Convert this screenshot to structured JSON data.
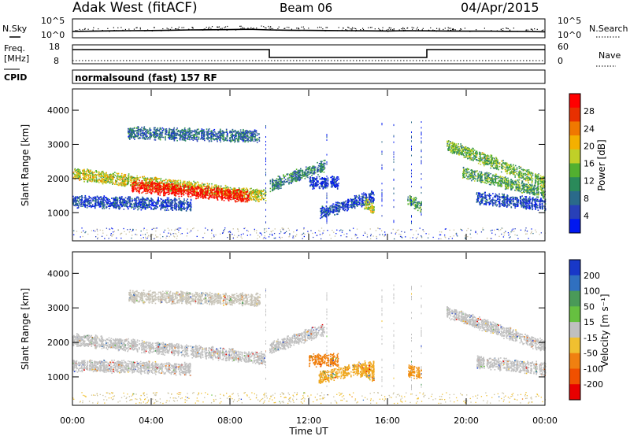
{
  "header": {
    "station": "Adak West (fitACF)",
    "beam": "Beam 06",
    "date": "04/Apr/2015"
  },
  "strip_nsky": {
    "label": "N.Sky",
    "ticks": [
      "10^5",
      "10^0"
    ],
    "right_label": "N.Search",
    "right_ticks": [
      "10^5",
      "10^0"
    ]
  },
  "strip_freq": {
    "label_line1": "Freq.",
    "label_line2": "[MHz]",
    "ticks": [
      "18",
      "8"
    ],
    "right_label": "Nave",
    "right_ticks": [
      "60",
      "0"
    ]
  },
  "cpid": {
    "label": "CPID",
    "mode": "normalsound (fast) 157 RF"
  },
  "colors": {
    "frame": "#000000",
    "noise_speckle": "#c8c0a0"
  },
  "chart_data": [
    {
      "type": "line",
      "panel": "noise",
      "ylabel": "N.Sky",
      "y2label": "N.Search",
      "x": [
        "00:00",
        "01:00",
        "02:00",
        "03:00",
        "04:00",
        "05:00",
        "06:00",
        "07:00",
        "08:00",
        "09:00",
        "10:00",
        "11:00",
        "12:00",
        "13:00",
        "14:00",
        "15:00",
        "16:00",
        "17:00",
        "18:00",
        "19:00",
        "20:00",
        "21:00",
        "22:00",
        "23:00",
        "24:00"
      ],
      "values": [
        0.3,
        0.32,
        0.34,
        0.35,
        0.36,
        0.38,
        0.4,
        0.41,
        0.42,
        0.44,
        0.4,
        0.38,
        0.37,
        0.36,
        0.35,
        0.34,
        0.33,
        0.35,
        0.34,
        0.33,
        0.32,
        0.32,
        0.31,
        0.3,
        0.28
      ]
    },
    {
      "type": "line",
      "panel": "frequency",
      "ylabel": "Freq. [MHz]",
      "y2label": "Nave",
      "ylim": [
        8,
        18
      ],
      "series": [
        {
          "x": [
            0,
            10,
            10,
            18,
            18,
            24
          ],
          "values": [
            16,
            16,
            11,
            11,
            16,
            16
          ]
        }
      ],
      "nave_level": 9
    },
    {
      "type": "heatmap",
      "panel": "power",
      "ylabel": "Slant Range [km]",
      "xlabel": "",
      "xlim": [
        0,
        24
      ],
      "ylim": [
        200,
        4600
      ],
      "xticks": [
        "00:00",
        "04:00",
        "08:00",
        "12:00",
        "16:00",
        "20:00",
        "00:00"
      ],
      "yticks": [
        "1000",
        "2000",
        "3000",
        "4000"
      ],
      "colorbar_label": "Power [dB]",
      "colorbar_ticks": [
        "4",
        "8",
        "12",
        "16",
        "20",
        "24",
        "28"
      ],
      "colorbar_colors": [
        "#0018f0",
        "#2840b8",
        "#2a6a8a",
        "#2a8a5a",
        "#52b030",
        "#c0d028",
        "#f4b000",
        "#f07800",
        "#e83000",
        "#ff0000"
      ],
      "regions": [
        {
          "t0": 0.0,
          "t1": 9.8,
          "r0": 2150,
          "r1": 1500,
          "level": 0.55
        },
        {
          "t0": 3.0,
          "t1": 9.0,
          "r0": 1800,
          "r1": 1480,
          "level": 0.95
        },
        {
          "t0": 0.0,
          "t1": 6.0,
          "r0": 1350,
          "r1": 1250,
          "level": 0.15
        },
        {
          "t0": 2.8,
          "t1": 9.5,
          "r0": 3350,
          "r1": 3250,
          "level": 0.25
        },
        {
          "t0": 10.0,
          "t1": 12.8,
          "r0": 1800,
          "r1": 2400,
          "level": 0.3
        },
        {
          "t0": 12.0,
          "t1": 13.5,
          "r0": 1900,
          "r1": 1900,
          "level": 0.1
        },
        {
          "t0": 12.5,
          "t1": 15.3,
          "r0": 1000,
          "r1": 1500,
          "level": 0.15
        },
        {
          "t0": 14.8,
          "t1": 15.3,
          "r0": 1300,
          "r1": 1100,
          "level": 0.55
        },
        {
          "t0": 17.0,
          "t1": 17.7,
          "r0": 1400,
          "r1": 1200,
          "level": 0.35
        },
        {
          "t0": 19.0,
          "t1": 24.0,
          "r0": 3000,
          "r1": 1900,
          "level": 0.45
        },
        {
          "t0": 19.8,
          "t1": 24.0,
          "r0": 2200,
          "r1": 1600,
          "level": 0.4
        },
        {
          "t0": 20.5,
          "t1": 24.0,
          "r0": 1450,
          "r1": 1250,
          "level": 0.15
        }
      ]
    },
    {
      "type": "heatmap",
      "panel": "velocity",
      "ylabel": "Slant Range [km]",
      "xlabel": "Time UT",
      "xlim": [
        0,
        24
      ],
      "ylim": [
        200,
        4600
      ],
      "xticks": [
        "00:00",
        "04:00",
        "08:00",
        "12:00",
        "16:00",
        "20:00",
        "00:00"
      ],
      "yticks": [
        "1000",
        "2000",
        "3000",
        "4000"
      ],
      "colorbar_label": "Velocity [m s⁻¹]",
      "colorbar_ticks": [
        "200",
        "100",
        "50",
        "15",
        "-15",
        "-50",
        "-100",
        "-200"
      ],
      "colorbar_colors": [
        "#1838c8",
        "#3070c0",
        "#4a9a58",
        "#66c040",
        "#c0c0c0",
        "#f0c030",
        "#f08010",
        "#f05000",
        "#e80000"
      ],
      "regions": [
        {
          "t0": 0.0,
          "t1": 9.8,
          "r0": 2100,
          "r1": 1550,
          "color": "#c0c0c0"
        },
        {
          "t0": 0.0,
          "t1": 6.0,
          "r0": 1350,
          "r1": 1250,
          "color": "#c0c0c0"
        },
        {
          "t0": 2.8,
          "t1": 9.5,
          "r0": 3350,
          "r1": 3250,
          "color": "#c8c4b8"
        },
        {
          "t0": 10.0,
          "t1": 12.8,
          "r0": 1850,
          "r1": 2400,
          "color": "#c0c0c0"
        },
        {
          "t0": 12.0,
          "t1": 13.5,
          "r0": 1500,
          "r1": 1500,
          "color": "#f08010"
        },
        {
          "t0": 12.5,
          "t1": 15.3,
          "r0": 1000,
          "r1": 1350,
          "color": "#f0a820"
        },
        {
          "t0": 14.6,
          "t1": 15.3,
          "r0": 1200,
          "r1": 1050,
          "color": "#f0a820"
        },
        {
          "t0": 17.0,
          "t1": 17.7,
          "r0": 1200,
          "r1": 1100,
          "color": "#f09010"
        },
        {
          "t0": 19.0,
          "t1": 24.0,
          "r0": 2900,
          "r1": 1900,
          "color": "#c0c0c0"
        },
        {
          "t0": 20.5,
          "t1": 24.0,
          "r0": 1450,
          "r1": 1250,
          "color": "#c0c0c0"
        }
      ]
    }
  ]
}
